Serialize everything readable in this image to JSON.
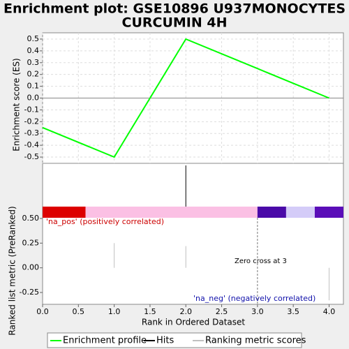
{
  "chart_data": [
    {
      "type": "line",
      "title": [
        "Enrichment plot: GSE10896 U937MONOCYTES",
        "CURCUMIN 4H"
      ],
      "ylabel": "Enrichment score (ES)",
      "x": [
        0,
        1,
        2,
        3,
        4
      ],
      "series": [
        {
          "name": "Enrichment profile",
          "color": "#00ff00",
          "values": [
            -0.25,
            -0.5,
            0.5,
            0.25,
            0
          ]
        }
      ],
      "hits": {
        "name": "Hits",
        "color": "#000000",
        "x": [
          2
        ]
      },
      "xlim": [
        0,
        4.2
      ],
      "xticks": [
        0,
        0.5,
        1,
        1.5,
        2,
        2.5,
        3,
        3.5,
        4
      ],
      "ylim": [
        -0.553,
        0.553
      ],
      "yticks": [
        0.5,
        0.4,
        0.3,
        0.2,
        0.1,
        {
          "value": 0,
          "label": "0.0"
        },
        -0.1,
        -0.2,
        -0.3,
        -0.4,
        -0.5
      ],
      "grid": true
    },
    {
      "type": "bar",
      "xlabel": "Rank in Ordered Dataset",
      "ylabel": "Ranked list metric (PreRanked)",
      "x": [
        1,
        2,
        4
      ],
      "series": [
        {
          "name": "Ranking metric scores",
          "color": "#c0c0c0",
          "values": [
            0.25,
            0.22,
            -0.33
          ]
        }
      ],
      "zero_cross": {
        "x": 3,
        "label": "Zero cross at 3"
      },
      "pos_label": "'na_pos' (positively correlated)",
      "neg_label": "'na_neg' (negatively correlated)",
      "color_bar": {
        "edges": [
          0,
          0.6,
          3.0,
          3.4,
          3.8,
          4.2
        ],
        "colors": [
          "#dd0000",
          "#fbc0e4",
          "#4a0aa8",
          "#d4ccf8",
          "#5a0db8"
        ]
      },
      "xlim": [
        0,
        4.2
      ],
      "xticks": [
        {
          "value": 0,
          "label": "0.0"
        },
        0.5,
        {
          "value": 1,
          "label": "1.0"
        },
        1.5,
        {
          "value": 2,
          "label": "2.0"
        },
        2.5,
        {
          "value": 3,
          "label": "3.0"
        },
        3.5,
        {
          "value": 4,
          "label": "4.0"
        }
      ],
      "ylim": [
        -0.37,
        0.62
      ],
      "yticks": [
        {
          "value": 0.5,
          "label": "0.50"
        },
        {
          "value": 0.25,
          "label": "0.25"
        },
        {
          "value": 0,
          "label": "0.00"
        },
        {
          "value": -0.25,
          "label": "-0.25"
        }
      ]
    }
  ]
}
